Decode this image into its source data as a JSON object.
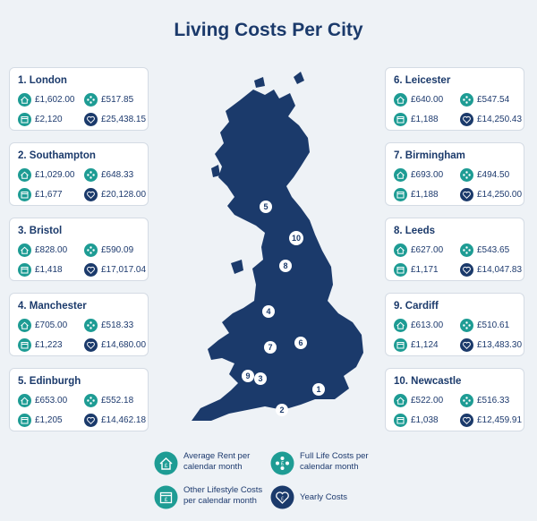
{
  "title": "Living Costs Per City",
  "colors": {
    "navy": "#1b3a6b",
    "teal": "#1e9c94",
    "background": "#eef2f6"
  },
  "icons": {
    "rent": "house-icon",
    "full": "people-icon",
    "other": "calendar-icon",
    "yearly": "heart-icon"
  },
  "cities": [
    {
      "name": "1. London",
      "rent": "£1,602.00",
      "full": "£517.85",
      "other": "£2,120",
      "yearly": "£25,438.15",
      "marker": "1"
    },
    {
      "name": "2. Southampton",
      "rent": "£1,029.00",
      "full": "£648.33",
      "other": "£1,677",
      "yearly": "£20,128.00",
      "marker": "2"
    },
    {
      "name": "3. Bristol",
      "rent": "£828.00",
      "full": "£590.09",
      "other": "£1,418",
      "yearly": "£17,017.04",
      "marker": "3"
    },
    {
      "name": "4. Manchester",
      "rent": "£705.00",
      "full": "£518.33",
      "other": "£1,223",
      "yearly": "£14,680.00",
      "marker": "4"
    },
    {
      "name": "5. Edinburgh",
      "rent": "£653.00",
      "full": "£552.18",
      "other": "£1,205",
      "yearly": "£14,462.18",
      "marker": "5"
    },
    {
      "name": "6. Leicester",
      "rent": "£640.00",
      "full": "£547.54",
      "other": "£1,188",
      "yearly": "£14,250.43",
      "marker": "6"
    },
    {
      "name": "7. Birmingham",
      "rent": "£693.00",
      "full": "£494.50",
      "other": "£1,188",
      "yearly": "£14,250.00",
      "marker": "7"
    },
    {
      "name": "8. Leeds",
      "rent": "£627.00",
      "full": "£543.65",
      "other": "£1,171",
      "yearly": "£14,047.83",
      "marker": "8"
    },
    {
      "name": "9. Cardiff",
      "rent": "£613.00",
      "full": "£510.61",
      "other": "£1,124",
      "yearly": "£13,483.30",
      "marker": "9"
    },
    {
      "name": "10. Newcastle",
      "rent": "£522.00",
      "full": "£516.33",
      "other": "£1,038",
      "yearly": "£12,459.91",
      "marker": "10"
    }
  ],
  "legend": {
    "rent": "Average Rent per calendar month",
    "full": "Full Life Costs per calendar month",
    "other": "Other Lifestyle Costs per calendar month",
    "yearly": "Yearly Costs"
  }
}
